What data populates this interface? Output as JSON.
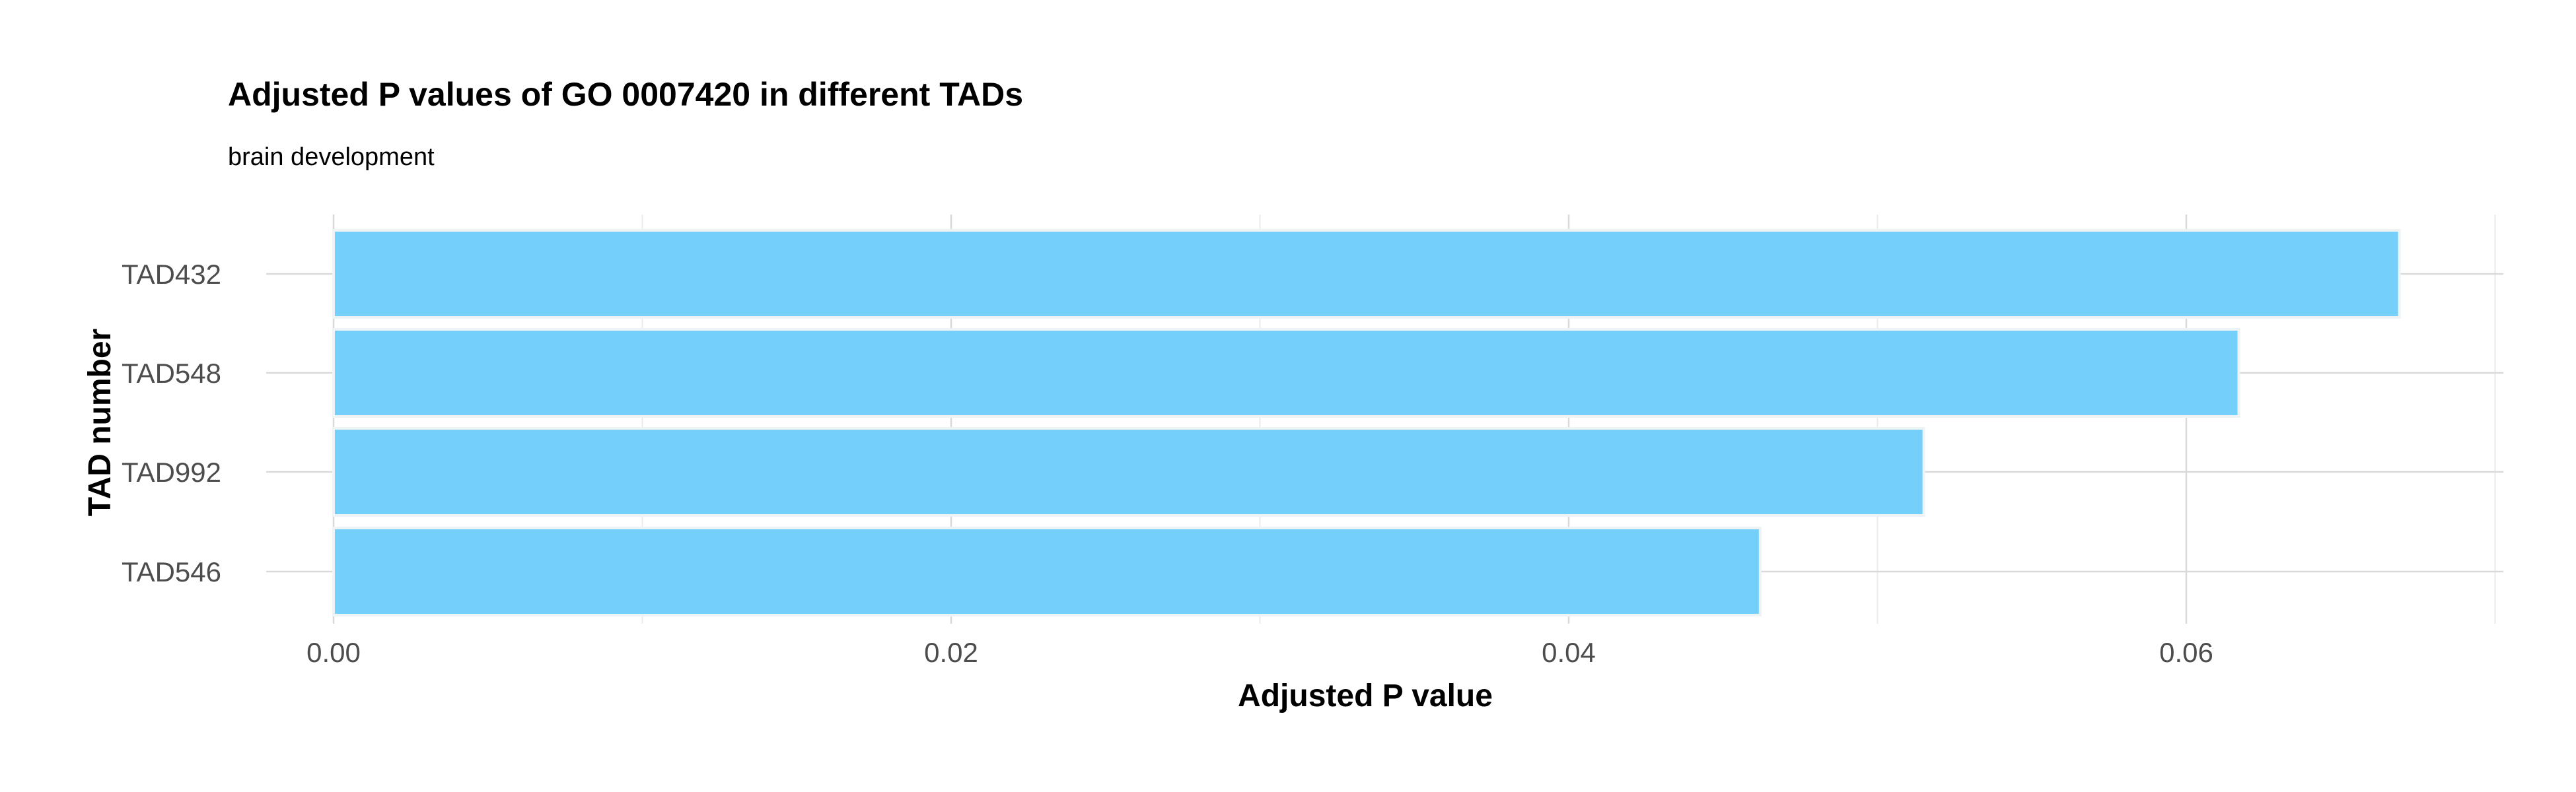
{
  "chart_data": {
    "type": "bar",
    "orientation": "horizontal",
    "title": "Adjusted P values of GO 0007420 in different TADs",
    "subtitle": "brain development",
    "xlabel": "Adjusted P value",
    "ylabel": "TAD number",
    "categories": [
      "TAD432",
      "TAD548",
      "TAD992",
      "TAD546"
    ],
    "values": [
      0.0669,
      0.0617,
      0.0515,
      0.0462
    ],
    "xlim": [
      0,
      0.07
    ],
    "x_ticks": [
      "0.00",
      "0.02",
      "0.04",
      "0.06"
    ],
    "x_tick_values": [
      0,
      0.02,
      0.04,
      0.06
    ],
    "grid": true,
    "legend": "none",
    "colors": {
      "bar_fill": "#75CFFB",
      "bar_outline": "#EEF3F6",
      "grid_major": "#D9D9D9",
      "grid_minor": "#EBEBEB",
      "tick_text": "#4D4D4D",
      "title_text": "#000000"
    }
  }
}
